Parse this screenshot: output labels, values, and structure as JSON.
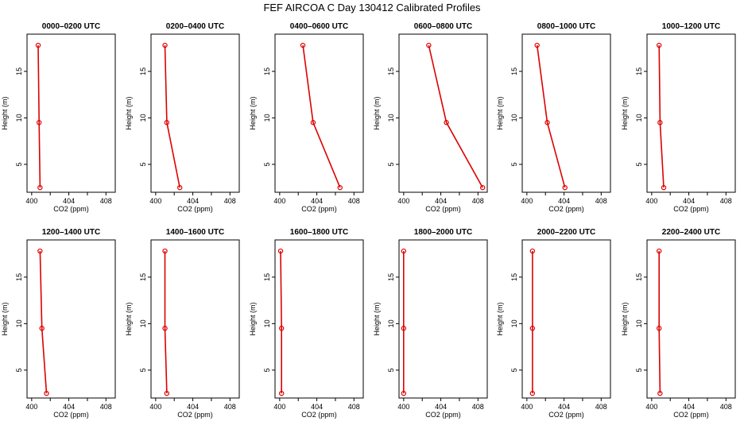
{
  "title": "FEF AIRCOA C  Day 130412  Calibrated Profiles",
  "chart_data": {
    "type": "line",
    "title": "FEF AIRCOA C  Day 130412  Calibrated Profiles",
    "xlabel": "CO2 (ppm)",
    "ylabel": "Height (m)",
    "xlim": [
      399.5,
      409
    ],
    "ylim": [
      2,
      19
    ],
    "xticks": [
      400,
      402,
      404,
      406,
      408
    ],
    "xtick_labels": [
      "400",
      "404",
      "408"
    ],
    "yticks": [
      5,
      10,
      15
    ],
    "grid": false,
    "color": "#dd0000",
    "panels": [
      {
        "title": "0000–0200 UTC",
        "x": [
          400.7,
          400.8,
          400.9
        ],
        "y": [
          17.8,
          9.5,
          2.5
        ]
      },
      {
        "title": "0200–0400 UTC",
        "x": [
          401.0,
          401.2,
          402.6
        ],
        "y": [
          17.8,
          9.5,
          2.5
        ]
      },
      {
        "title": "0400–0600 UTC",
        "x": [
          402.5,
          403.6,
          406.5
        ],
        "y": [
          17.8,
          9.5,
          2.5
        ]
      },
      {
        "title": "0600–0800 UTC",
        "x": [
          402.7,
          404.6,
          408.5
        ],
        "y": [
          17.8,
          9.5,
          2.5
        ]
      },
      {
        "title": "0800–1000 UTC",
        "x": [
          401.1,
          402.2,
          404.1
        ],
        "y": [
          17.8,
          9.5,
          2.5
        ]
      },
      {
        "title": "1000–1200 UTC",
        "x": [
          400.8,
          400.9,
          401.3
        ],
        "y": [
          17.8,
          9.5,
          2.5
        ]
      },
      {
        "title": "1200–1400 UTC",
        "x": [
          400.9,
          401.1,
          401.6
        ],
        "y": [
          17.8,
          9.5,
          2.5
        ]
      },
      {
        "title": "1400–1600 UTC",
        "x": [
          401.0,
          401.0,
          401.2
        ],
        "y": [
          17.8,
          9.5,
          2.5
        ]
      },
      {
        "title": "1600–1800 UTC",
        "x": [
          400.1,
          400.2,
          400.2
        ],
        "y": [
          17.8,
          9.5,
          2.5
        ]
      },
      {
        "title": "1800–2000 UTC",
        "x": [
          400.0,
          400.0,
          400.0
        ],
        "y": [
          17.8,
          9.5,
          2.5
        ]
      },
      {
        "title": "2000–2200 UTC",
        "x": [
          400.6,
          400.6,
          400.6
        ],
        "y": [
          17.8,
          9.5,
          2.5
        ]
      },
      {
        "title": "2200–2400 UTC",
        "x": [
          400.8,
          400.8,
          400.9
        ],
        "y": [
          17.8,
          9.5,
          2.5
        ]
      }
    ]
  }
}
